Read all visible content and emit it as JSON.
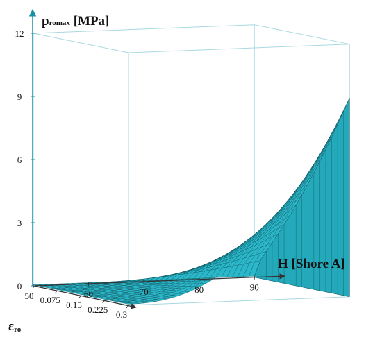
{
  "chart_data": {
    "type": "surface3d",
    "title": "",
    "zlabel": {
      "main": "p",
      "sub": "romax",
      "unit": " [MPa]"
    },
    "xlabel": "H [Shore A]",
    "ylabel": {
      "main": "ε",
      "sub": "ro"
    },
    "x_ticks": [
      "50",
      "60",
      "70",
      "80",
      "90"
    ],
    "y_ticks": [
      "0.075",
      "0.15",
      "0.225",
      "0.3"
    ],
    "z_ticks": [
      "0",
      "3",
      "6",
      "9",
      "12"
    ],
    "xlim": [
      50,
      90
    ],
    "ylim": [
      0,
      0.3
    ],
    "zlim": [
      0,
      12
    ],
    "surface_color": "#2ab7c9",
    "mesh_color": "#0d4f5a",
    "box_color": "#a8d8e0",
    "axis_color": "#1a8fa8",
    "grid": false
  }
}
